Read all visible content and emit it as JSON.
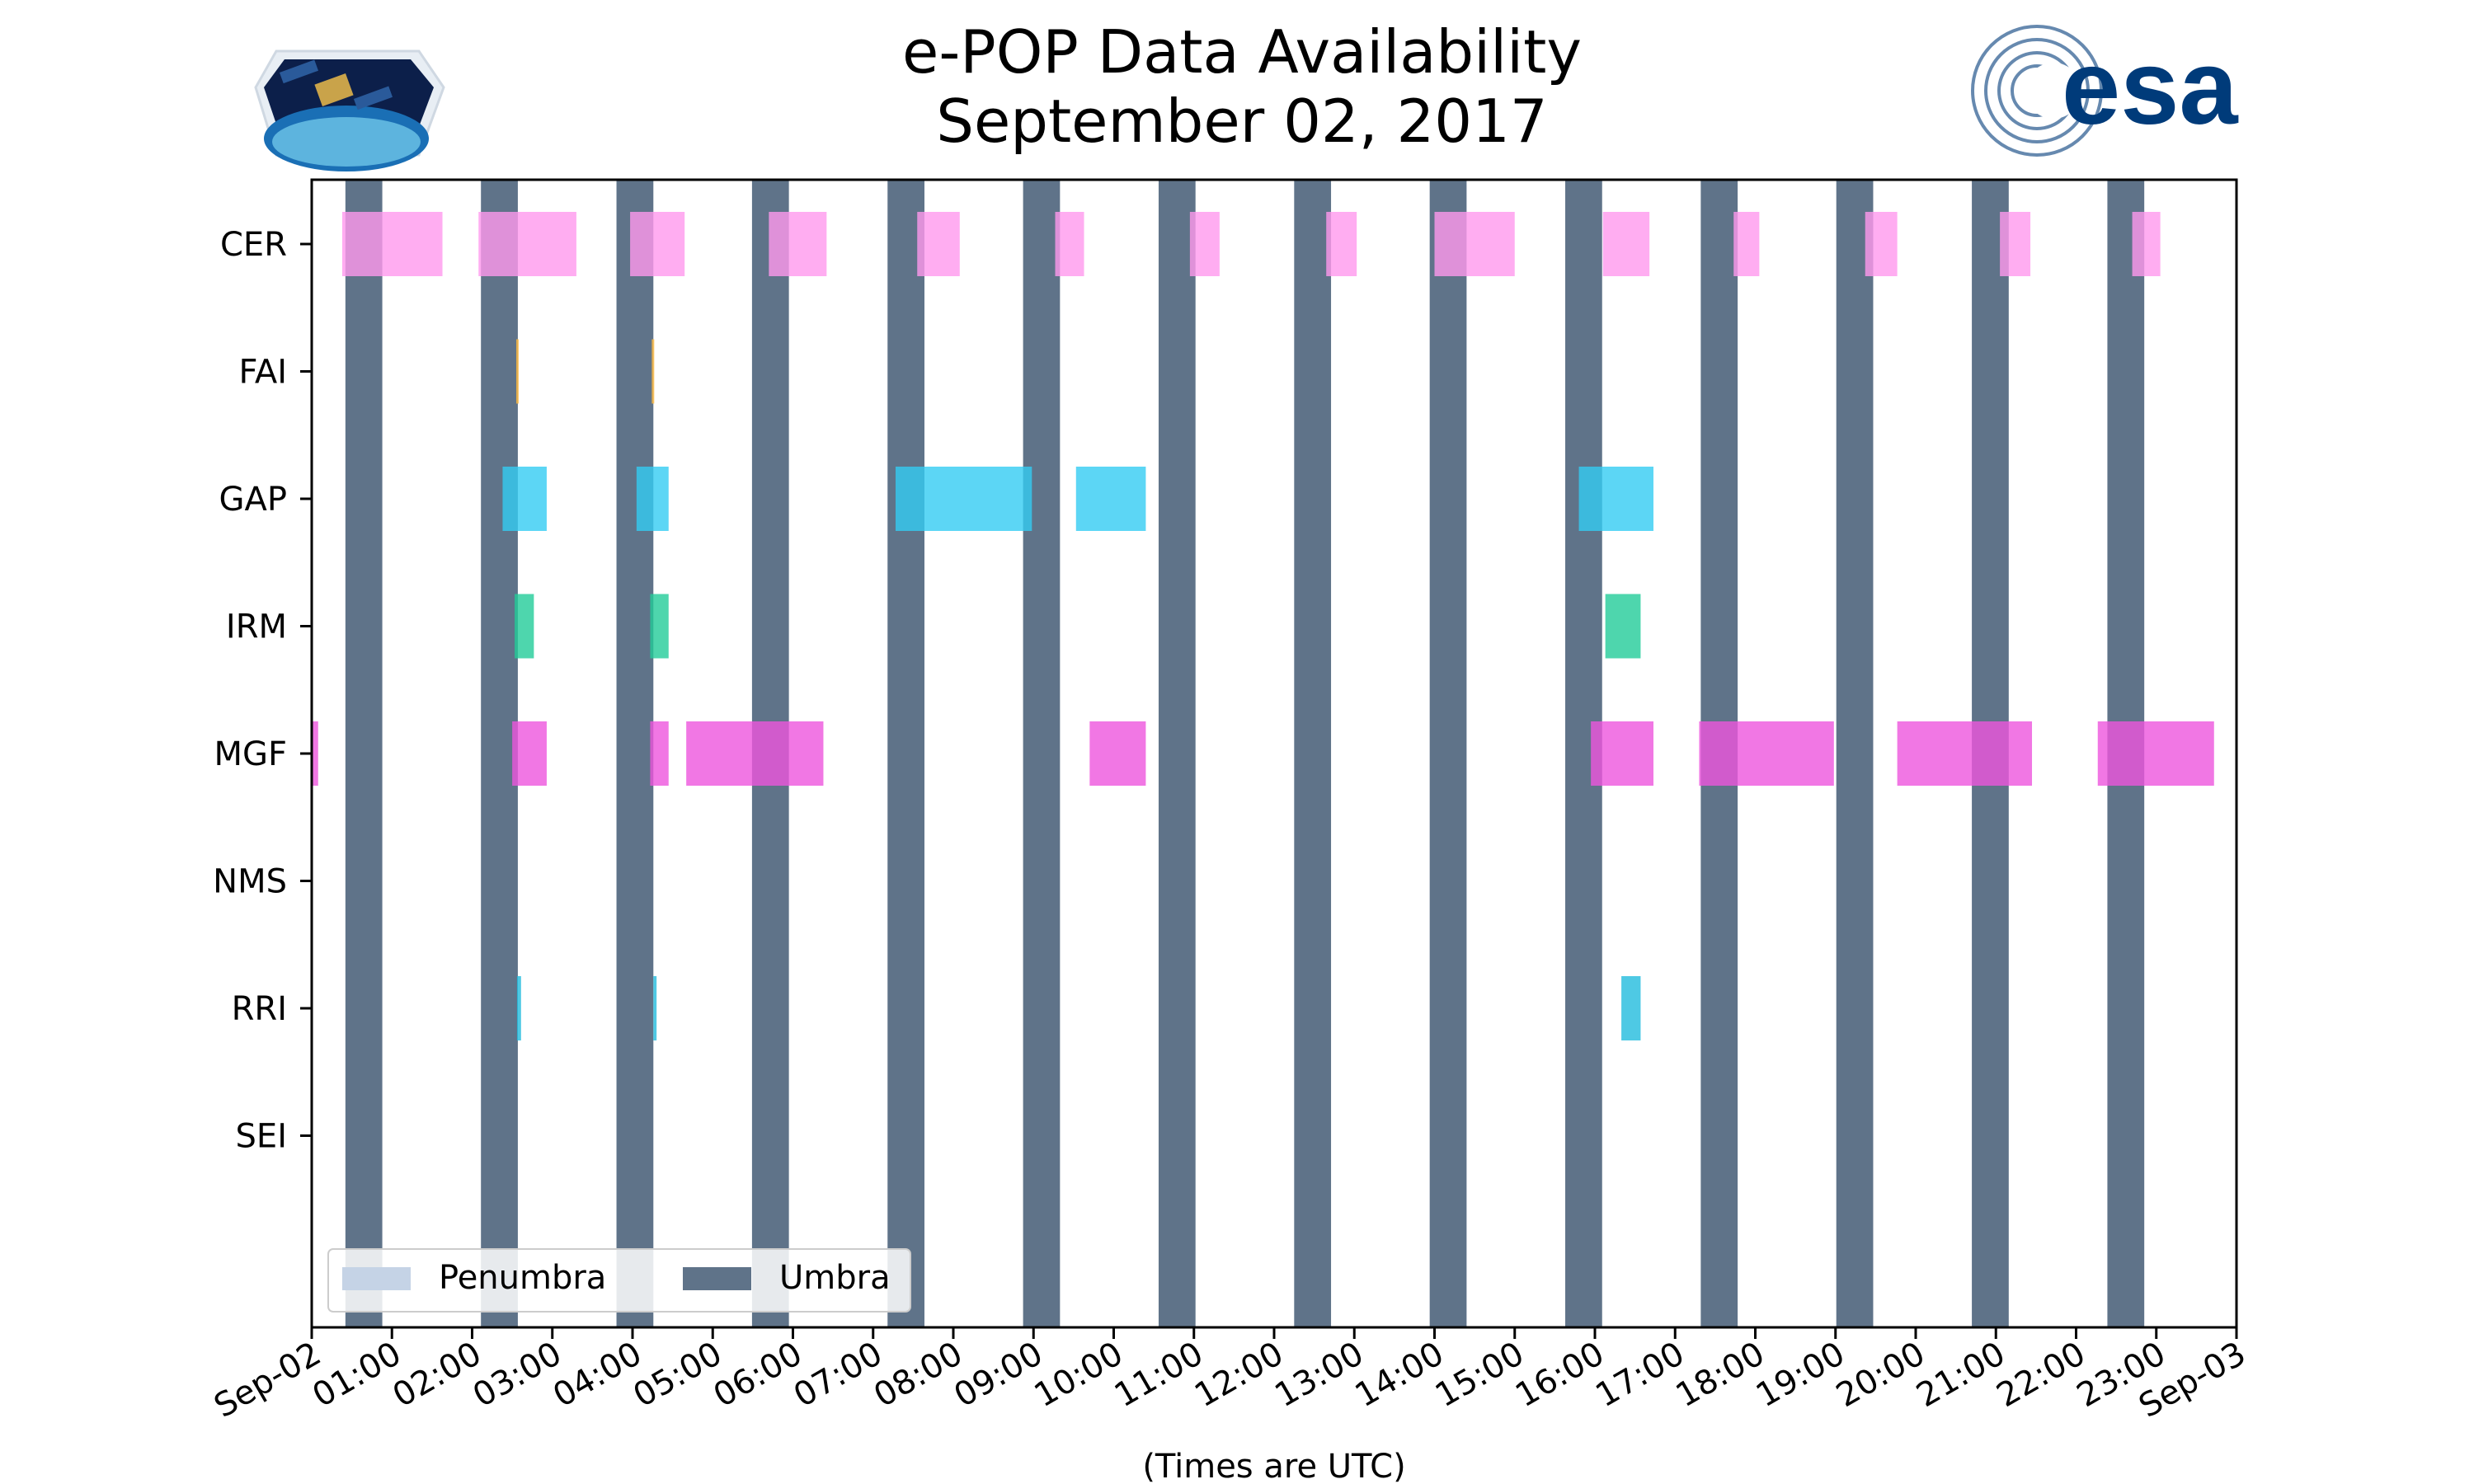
{
  "chart_data": {
    "type": "timeline",
    "title_line1": "e-POP Data Availability",
    "title_line2": "September 02, 2017",
    "xlabel": "(Times are UTC)",
    "x_range_hours": [
      0,
      24
    ],
    "x_tick_labels": [
      "Sep-02",
      "01:00",
      "02:00",
      "03:00",
      "04:00",
      "05:00",
      "06:00",
      "07:00",
      "08:00",
      "09:00",
      "10:00",
      "11:00",
      "12:00",
      "13:00",
      "14:00",
      "15:00",
      "16:00",
      "17:00",
      "18:00",
      "19:00",
      "20:00",
      "21:00",
      "22:00",
      "23:00",
      "Sep-03"
    ],
    "instruments": [
      "CER",
      "FAI",
      "GAP",
      "IRM",
      "MGF",
      "NMS",
      "RRI",
      "SEI"
    ],
    "colors": {
      "CER": "#ff99ee",
      "FAI": "#ffbb44",
      "GAP": "#33ccf2",
      "IRM": "#22cc99",
      "MGF": "#ee55dd",
      "NMS": "#aaaaaa",
      "RRI": "#22bbdd",
      "SEI": "#aaaaaa",
      "umbra": "#5f7389",
      "penumbra": "#c5d3e6"
    },
    "umbra_periods_hours": [
      [
        0.42,
        0.88
      ],
      [
        2.11,
        2.57
      ],
      [
        3.8,
        4.26
      ],
      [
        5.49,
        5.95
      ],
      [
        7.18,
        7.64
      ],
      [
        8.87,
        9.33
      ],
      [
        10.56,
        11.02
      ],
      [
        12.25,
        12.71
      ],
      [
        13.94,
        14.4
      ],
      [
        15.63,
        16.09
      ],
      [
        17.32,
        17.78
      ],
      [
        19.01,
        19.47
      ],
      [
        20.7,
        21.16
      ],
      [
        22.39,
        22.85
      ]
    ],
    "intervals_hours": {
      "CER": [
        [
          0.38,
          1.63
        ],
        [
          2.08,
          3.3
        ],
        [
          3.97,
          4.65
        ],
        [
          5.7,
          6.42
        ],
        [
          7.55,
          8.08
        ],
        [
          9.27,
          9.63
        ],
        [
          10.95,
          11.32
        ],
        [
          12.65,
          13.03
        ],
        [
          14.0,
          15.0
        ],
        [
          16.1,
          16.68
        ],
        [
          17.73,
          18.05
        ],
        [
          19.37,
          19.77
        ],
        [
          21.05,
          21.43
        ],
        [
          22.7,
          23.05
        ]
      ],
      "FAI": [
        [
          2.55,
          2.58
        ],
        [
          4.24,
          4.27
        ]
      ],
      "GAP": [
        [
          2.38,
          2.93
        ],
        [
          4.05,
          4.45
        ],
        [
          7.28,
          8.98
        ],
        [
          9.53,
          10.4
        ],
        [
          15.8,
          16.73
        ]
      ],
      "IRM": [
        [
          2.53,
          2.77
        ],
        [
          4.22,
          4.45
        ],
        [
          16.13,
          16.57
        ]
      ],
      "MGF": [
        [
          0.0,
          0.08
        ],
        [
          2.5,
          2.93
        ],
        [
          4.22,
          4.45
        ],
        [
          4.67,
          6.38
        ],
        [
          9.7,
          10.4
        ],
        [
          15.95,
          16.73
        ],
        [
          17.3,
          18.98
        ],
        [
          19.77,
          21.45
        ],
        [
          22.27,
          23.72
        ]
      ],
      "NMS": [],
      "RRI": [
        [
          2.56,
          2.61
        ],
        [
          4.26,
          4.3
        ],
        [
          16.33,
          16.57
        ]
      ],
      "SEI": []
    },
    "legend": {
      "position": "lower left",
      "entries": [
        "Penumbra",
        "Umbra"
      ]
    }
  }
}
